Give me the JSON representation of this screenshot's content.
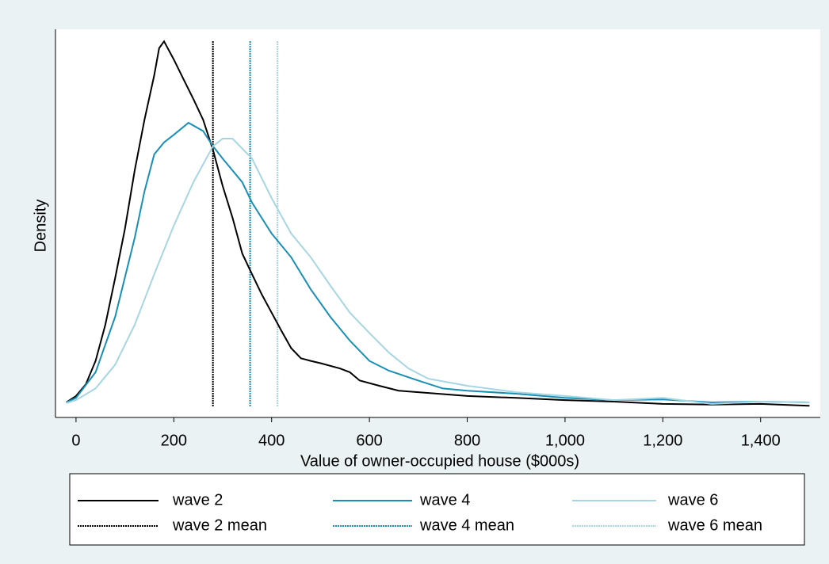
{
  "chart_data": {
    "type": "line",
    "x_label": "Value of owner-occupied house ($000s)",
    "y_label": "Density",
    "xlim": [
      -42,
      1522
    ],
    "ylim": [
      -3,
      100
    ],
    "xticks": [
      0,
      200,
      400,
      600,
      800,
      {
        "value": 1000,
        "label": "1,000"
      },
      {
        "value": 1200,
        "label": "1,200"
      },
      {
        "value": 1400,
        "label": "1,400"
      }
    ],
    "series": [
      {
        "name": "wave 2",
        "color": "#000000",
        "x": [
          -20,
          0,
          20,
          40,
          60,
          80,
          100,
          120,
          140,
          160,
          170,
          180,
          200,
          220,
          240,
          260,
          280,
          300,
          320,
          340,
          360,
          380,
          400,
          420,
          440,
          460,
          480,
          500,
          540,
          560,
          580,
          620,
          660,
          700,
          800,
          900,
          1000,
          1100,
          1200,
          1300,
          1400,
          1500
        ],
        "values": [
          1,
          2.7,
          5.8,
          12,
          21.6,
          34,
          47,
          62.6,
          76,
          87.8,
          95,
          96.8,
          92,
          86.7,
          81.5,
          76,
          68,
          58.4,
          50,
          40.5,
          35,
          29.6,
          24.8,
          20,
          15.4,
          12.7,
          12,
          11.4,
          10,
          9,
          6.8,
          5.4,
          4.1,
          3.7,
          2.7,
          2.2,
          1.6,
          1.2,
          0.6,
          0.4,
          0.6,
          0.1
        ]
      },
      {
        "name": "wave 4",
        "color": "#1a8fb5",
        "x": [
          -20,
          0,
          40,
          80,
          120,
          140,
          160,
          180,
          200,
          230,
          260,
          280,
          300,
          340,
          360,
          400,
          440,
          480,
          520,
          560,
          600,
          640,
          700,
          750,
          800,
          900,
          1000,
          1100,
          1200,
          1300,
          1400,
          1500
        ],
        "values": [
          1,
          2.2,
          9,
          23.7,
          44.7,
          57,
          66.8,
          70,
          72,
          75.2,
          73,
          69,
          65.7,
          59.4,
          54,
          45.8,
          39.5,
          31,
          23.7,
          17.4,
          12,
          9.4,
          6.8,
          4.7,
          4.1,
          3.3,
          2.2,
          1.6,
          1.8,
          1,
          1.2,
          1
        ]
      },
      {
        "name": "wave 6",
        "color": "#a7d6e2",
        "x": [
          -20,
          0,
          40,
          80,
          120,
          160,
          200,
          240,
          280,
          300,
          320,
          360,
          400,
          440,
          480,
          520,
          560,
          600,
          640,
          680,
          720,
          800,
          900,
          1000,
          1100,
          1200,
          1300,
          1400,
          1500
        ],
        "values": [
          0.8,
          1.6,
          4.7,
          11,
          21.6,
          35,
          47.9,
          59.4,
          69,
          71,
          71,
          65.7,
          55.2,
          45.8,
          39.5,
          32,
          24.8,
          19.4,
          14.2,
          10,
          7.3,
          5.4,
          3.7,
          2.7,
          1.6,
          2.2,
          0.6,
          1.2,
          1
        ]
      }
    ],
    "mean_lines": [
      {
        "name": "wave 2 mean",
        "color": "#000000",
        "value": 280
      },
      {
        "name": "wave 4 mean",
        "color": "#1a8fb5",
        "value": 356
      },
      {
        "name": "wave 6 mean",
        "color": "#a7d6e2",
        "value": 412
      }
    ]
  }
}
